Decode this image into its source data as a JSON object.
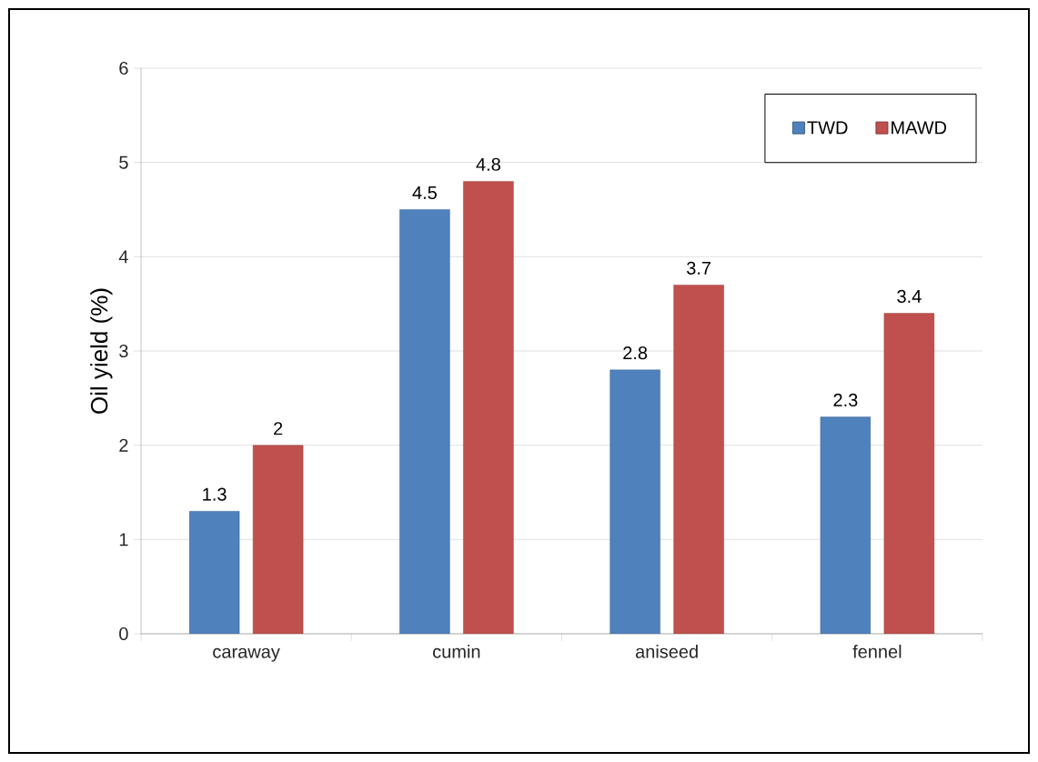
{
  "chart_data": {
    "type": "bar",
    "ylabel": "Oil yield (%)",
    "categories": [
      "caraway",
      "cumin",
      "aniseed",
      "fennel"
    ],
    "series": [
      {
        "name": "TWD",
        "color": "#4f81bd",
        "values": [
          1.3,
          4.5,
          2.8,
          2.3
        ]
      },
      {
        "name": "MAWD",
        "color": "#c0504d",
        "values": [
          2,
          4.8,
          3.7,
          3.4
        ]
      }
    ],
    "ylim": [
      0,
      6
    ],
    "yticks": [
      0,
      1,
      2,
      3,
      4,
      5,
      6
    ],
    "grid": "y",
    "legend": "top right",
    "data_labels": true
  }
}
